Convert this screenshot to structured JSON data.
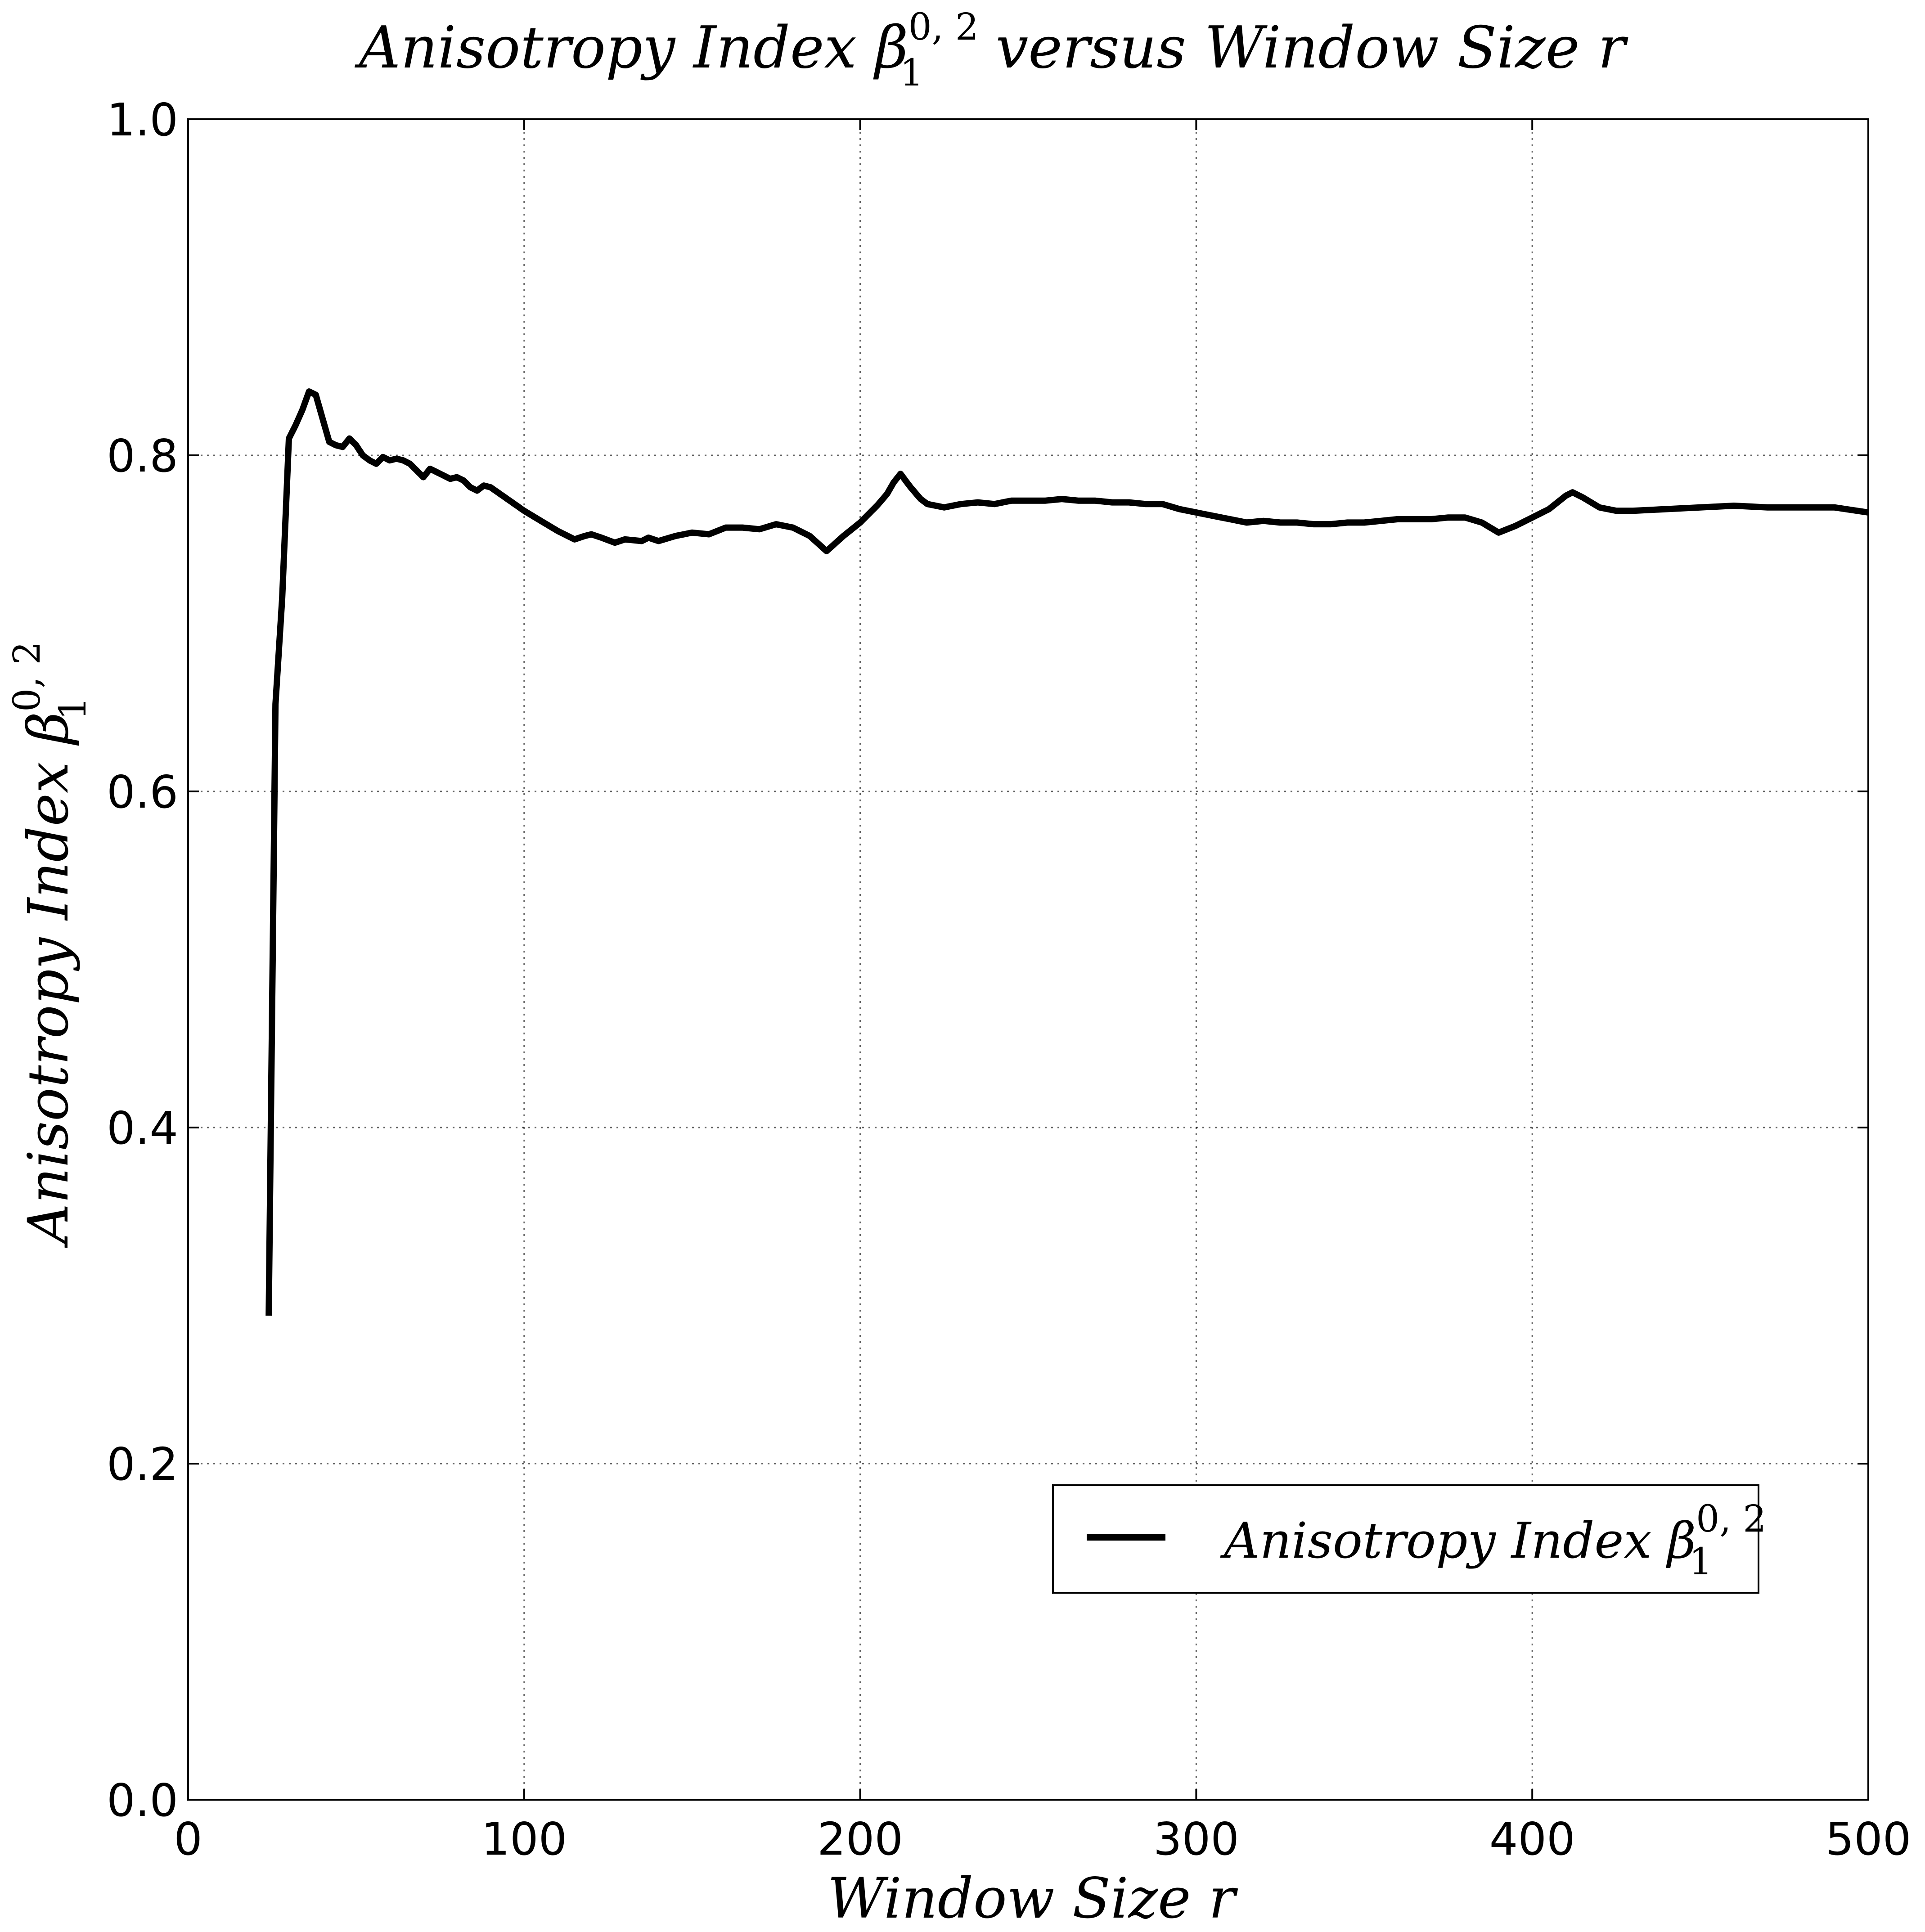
{
  "chart_data": {
    "type": "line",
    "title": {
      "main": "Anisotropy Index ",
      "symbol": "β",
      "sub": "1",
      "sup": "0, 2",
      "rest": " versus Window Size ",
      "var": "r"
    },
    "xlabel": {
      "text": "Window Size ",
      "var": "r"
    },
    "ylabel": {
      "text": "Anisotropy Index ",
      "symbol": "β",
      "sub": "1",
      "sup": "0, 2"
    },
    "xlim": [
      0,
      500
    ],
    "ylim": [
      0,
      1.0
    ],
    "xticks": [
      0,
      100,
      200,
      300,
      400,
      500
    ],
    "xtick_labels": [
      "0",
      "100",
      "200",
      "300",
      "400",
      "500"
    ],
    "yticks": [
      0.0,
      0.2,
      0.4,
      0.6,
      0.8,
      1.0
    ],
    "ytick_labels": [
      "0.0",
      "0.2",
      "0.4",
      "0.6",
      "0.8",
      "1.0"
    ],
    "grid": true,
    "legend_placement": "lower-right",
    "series": [
      {
        "name": {
          "text": "Anisotropy Index ",
          "symbol": "β",
          "sub": "1",
          "sup": "0, 2"
        },
        "color": "#000000",
        "x": [
          24,
          26,
          28,
          30,
          32,
          34,
          36,
          38,
          40,
          42,
          44,
          46,
          48,
          50,
          52,
          54,
          56,
          58,
          60,
          62,
          64,
          66,
          68,
          70,
          72,
          74,
          76,
          78,
          80,
          82,
          84,
          86,
          88,
          90,
          95,
          100,
          105,
          110,
          115,
          118,
          120,
          123,
          127,
          130,
          135,
          137,
          140,
          145,
          150,
          155,
          160,
          165,
          170,
          175,
          180,
          185,
          190,
          195,
          200,
          205,
          208,
          210,
          212,
          215,
          218,
          220,
          225,
          230,
          235,
          240,
          245,
          250,
          255,
          260,
          265,
          270,
          275,
          280,
          285,
          290,
          295,
          300,
          305,
          310,
          315,
          320,
          325,
          330,
          335,
          340,
          345,
          350,
          355,
          360,
          365,
          370,
          375,
          380,
          385,
          390,
          395,
          400,
          405,
          410,
          412,
          415,
          420,
          425,
          430,
          440,
          450,
          460,
          470,
          480,
          490,
          500
        ],
        "values": [
          0.288,
          0.652,
          0.715,
          0.81,
          0.818,
          0.827,
          0.838,
          0.836,
          0.822,
          0.808,
          0.806,
          0.805,
          0.81,
          0.806,
          0.8,
          0.797,
          0.795,
          0.799,
          0.797,
          0.798,
          0.797,
          0.795,
          0.791,
          0.787,
          0.792,
          0.79,
          0.788,
          0.786,
          0.787,
          0.785,
          0.781,
          0.779,
          0.782,
          0.781,
          0.774,
          0.767,
          0.761,
          0.755,
          0.75,
          0.752,
          0.753,
          0.751,
          0.748,
          0.75,
          0.749,
          0.751,
          0.749,
          0.752,
          0.754,
          0.753,
          0.757,
          0.757,
          0.756,
          0.759,
          0.757,
          0.752,
          0.743,
          0.752,
          0.76,
          0.77,
          0.777,
          0.784,
          0.789,
          0.781,
          0.774,
          0.771,
          0.769,
          0.771,
          0.772,
          0.771,
          0.773,
          0.773,
          0.773,
          0.774,
          0.773,
          0.773,
          0.772,
          0.772,
          0.771,
          0.771,
          0.768,
          0.766,
          0.764,
          0.762,
          0.76,
          0.761,
          0.76,
          0.76,
          0.759,
          0.759,
          0.76,
          0.76,
          0.761,
          0.762,
          0.762,
          0.762,
          0.763,
          0.763,
          0.76,
          0.754,
          0.758,
          0.763,
          0.768,
          0.776,
          0.778,
          0.775,
          0.769,
          0.767,
          0.767,
          0.768,
          0.769,
          0.77,
          0.769,
          0.769,
          0.769,
          0.766
        ]
      }
    ]
  }
}
